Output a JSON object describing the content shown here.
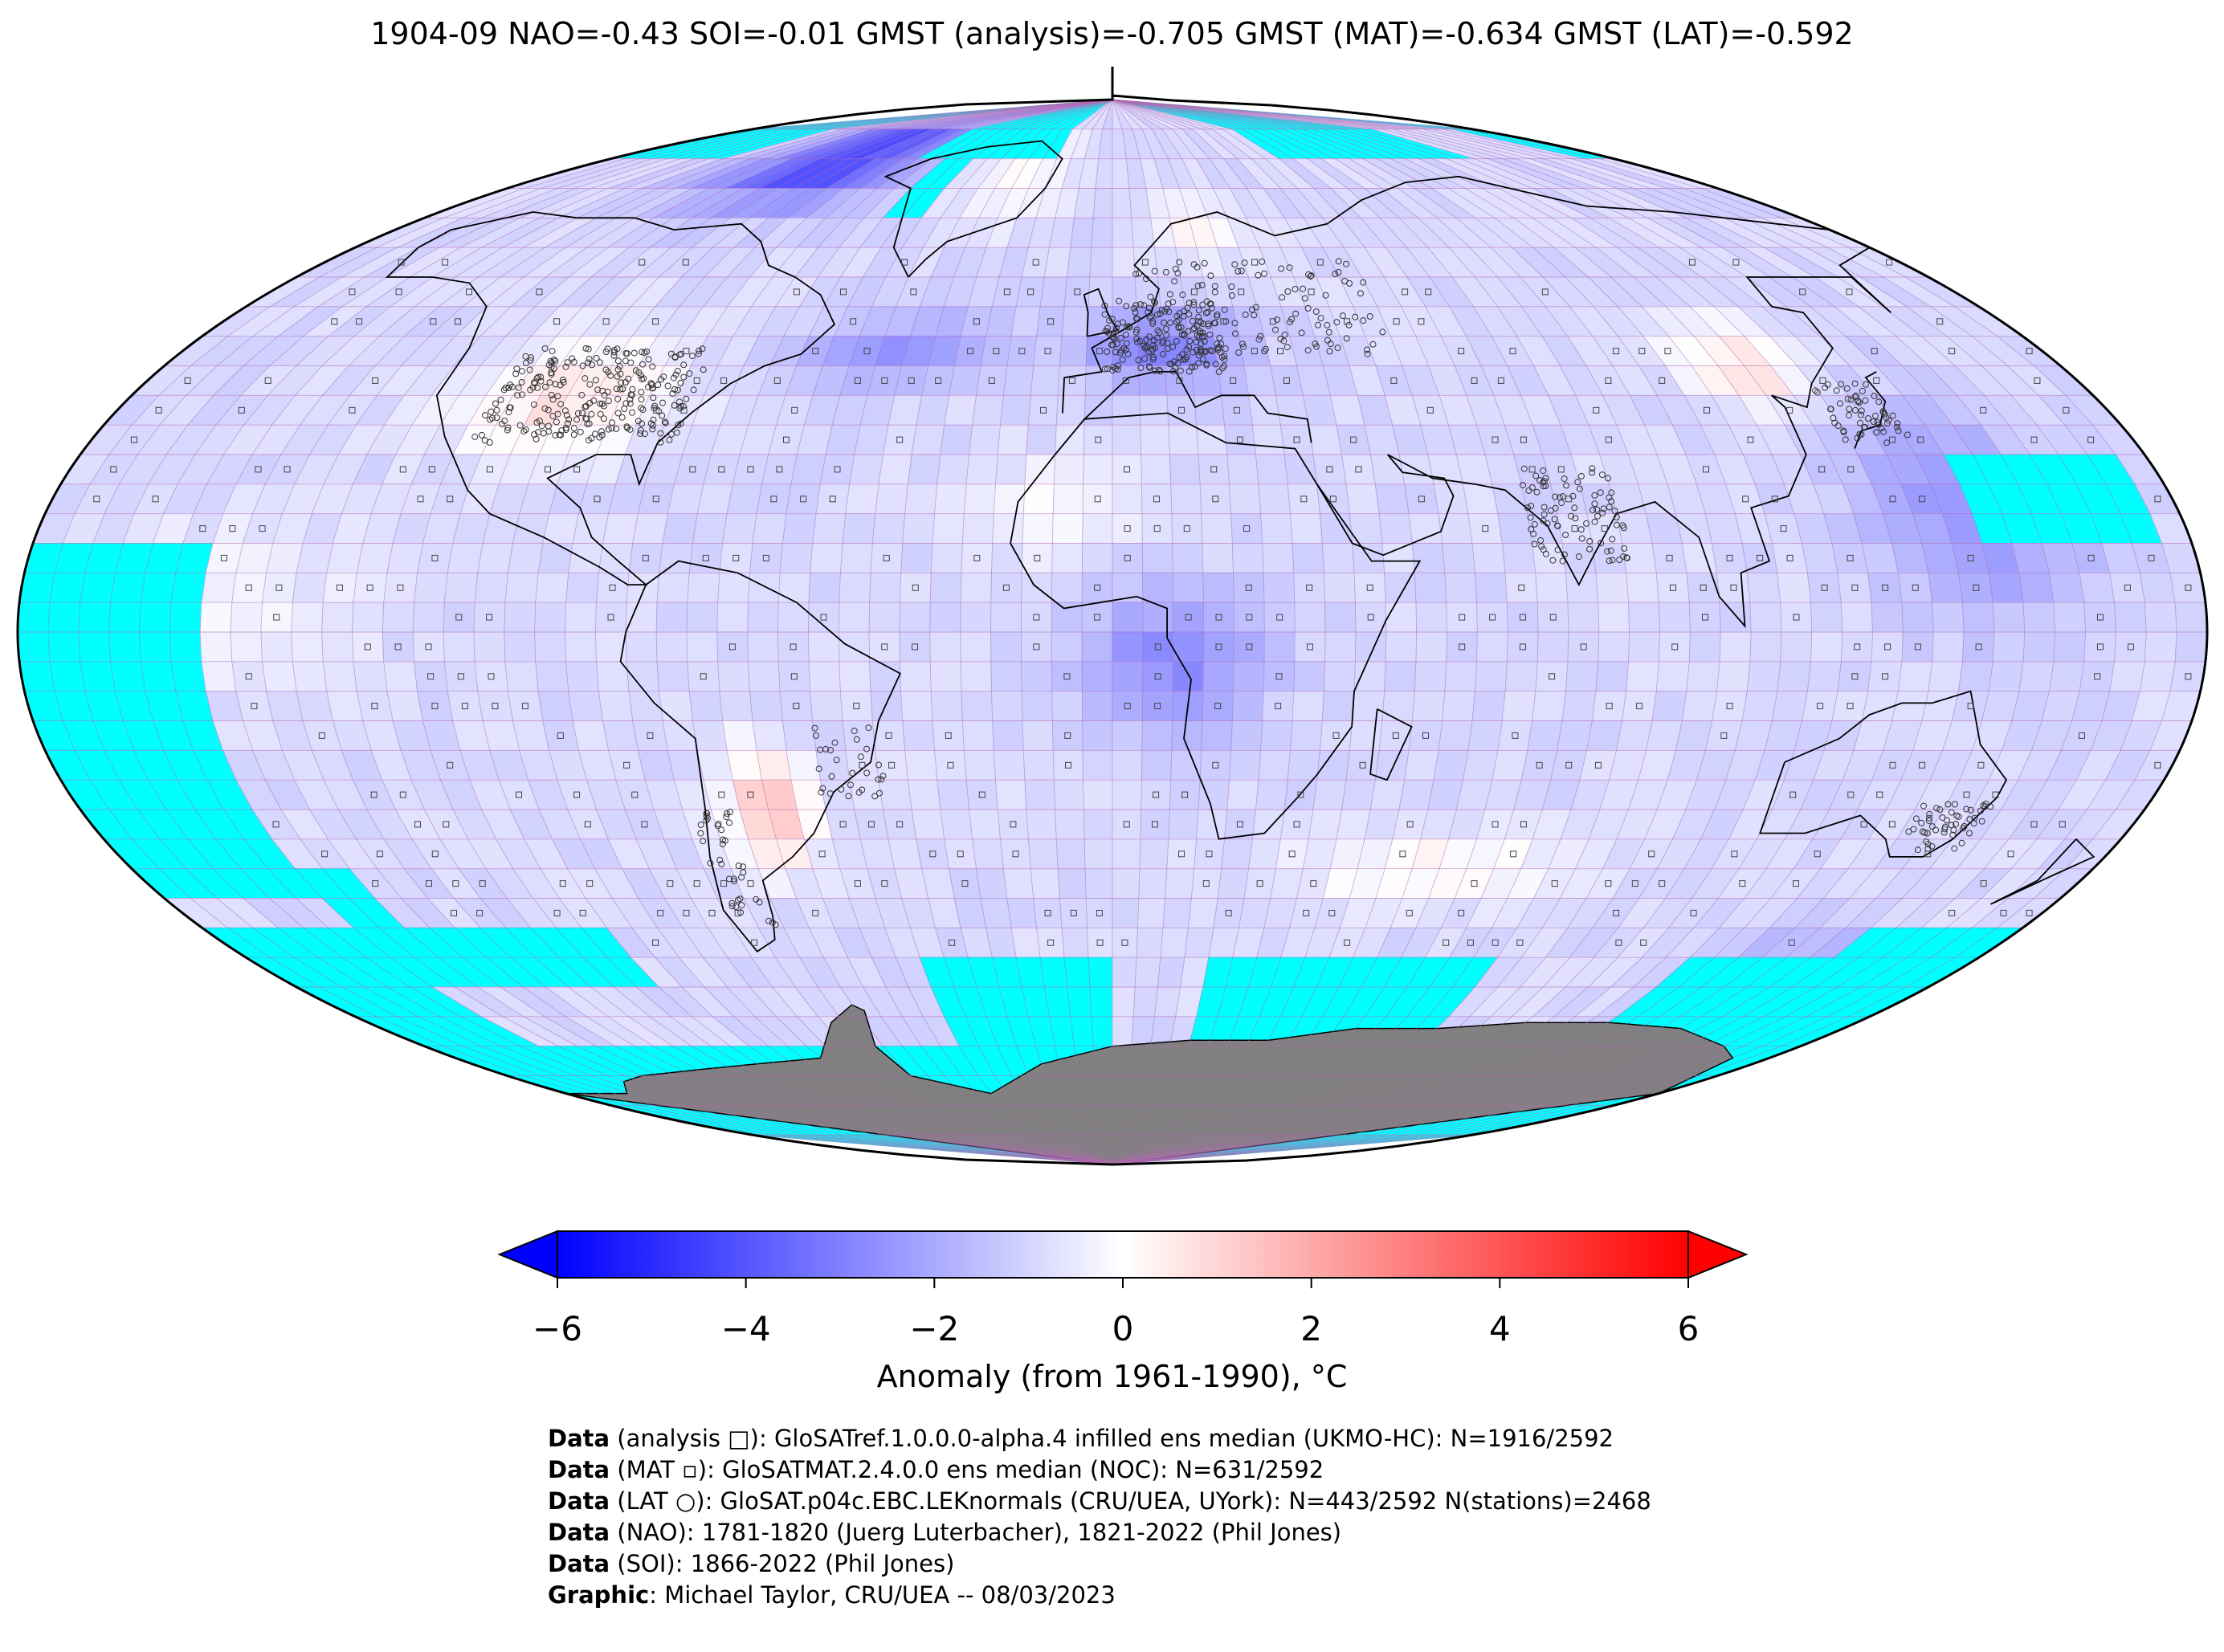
{
  "title": "1904-09 NAO=-0.43 SOI=-0.01 GMST (analysis)=-0.705 GMST (MAT)=-0.634 GMST (LAT)=-0.592",
  "colors": {
    "cold_max": "#0000ff",
    "neutral": "#ffffff",
    "warm_max": "#ff0000",
    "no_data": "#00ffff",
    "land_ice": "#808080",
    "grid": "#b06ab3",
    "coast": "#000000"
  },
  "colorbar": {
    "range": [
      -6,
      6
    ],
    "ticks": [
      "−6",
      "−4",
      "−2",
      "0",
      "2",
      "4",
      "6"
    ],
    "label": "Anomaly (from 1961-1990), °C",
    "extend": "both"
  },
  "credits": [
    {
      "key": "Data",
      "text": " (analysis □): GloSATref.1.0.0.0-alpha.4 infilled ens median (UKMO-HC): N=1916/2592"
    },
    {
      "key": "Data",
      "text": " (MAT ▫): GloSATMAT.2.4.0.0 ens median (NOC): N=631/2592"
    },
    {
      "key": "Data",
      "text": " (LAT ○): GloSAT.p04c.EBC.LEKnormals (CRU/UEA, UYork): N=443/2592 N(stations)=2468"
    },
    {
      "key": "Data",
      "text": " (NAO): 1781-1820 (Juerg Luterbacher), 1821-2022 (Phil Jones)"
    },
    {
      "key": "Data",
      "text": " (SOI): 1866-2022 (Phil Jones)"
    },
    {
      "key": "Graphic",
      "text": ": Michael Taylor, CRU/UEA -- 08/03/2023"
    }
  ]
}
